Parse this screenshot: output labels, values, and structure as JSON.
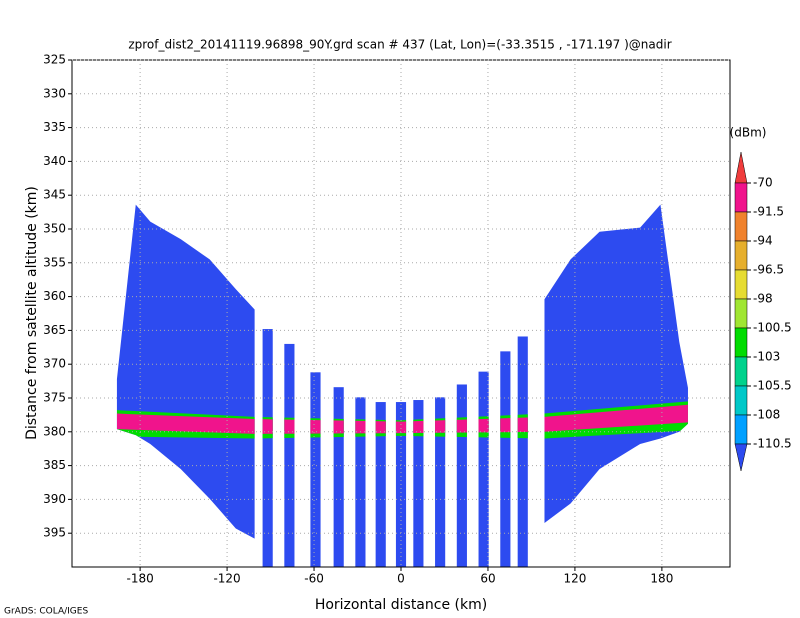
{
  "footer": "GrADS: COLA/IGES",
  "chart_data": {
    "type": "profile",
    "title": "zprof_dist2_20141119.96898_90Y.grd   scan # 437  (Lat, Lon)=(-33.3515 , -171.197 )@nadir",
    "xlabel": "Horizontal distance (km)",
    "ylabel": "Distance from satellite altitude (km)",
    "xlim": [
      -227,
      227
    ],
    "ylim": [
      400,
      325
    ],
    "xticks": [
      -180,
      -120,
      -60,
      0,
      60,
      120,
      180
    ],
    "yticks": [
      325,
      330,
      335,
      340,
      345,
      350,
      355,
      360,
      365,
      370,
      375,
      380,
      385,
      390,
      395
    ],
    "grid": true,
    "colorbar": {
      "label": "(dBm)",
      "levels": [
        -70,
        -91.5,
        -94,
        -96.5,
        -98,
        -100.5,
        -103,
        -105.5,
        -108,
        -110.5
      ],
      "colors": [
        "#f03c3c",
        "#f0148c",
        "#f0822d",
        "#e6af2d",
        "#e6dc32",
        "#a0e632",
        "#00dc00",
        "#00d28c",
        "#00c8c8",
        "#00a0ff",
        "#2d4bf0"
      ]
    },
    "layers": [
      {
        "x": [
          -196,
          -183,
          -173,
          -152,
          -132,
          -114,
          -101
        ],
        "top": [
          372.2,
          346.4,
          348.9,
          351.5,
          354.5,
          358.9,
          361.9
        ],
        "bottom": [
          379.6,
          380.5,
          381.8,
          385.5,
          389.9,
          394.3,
          395.8
        ],
        "value": -112,
        "clipped": false
      },
      {
        "x": [
          99,
          117,
          137,
          165,
          179,
          192,
          198
        ],
        "top": [
          360.4,
          354.5,
          350.4,
          349.8,
          346.4,
          366.7,
          373.5
        ],
        "bottom": [
          393.5,
          390.6,
          385.5,
          381.8,
          381,
          380,
          378.8
        ],
        "value": -112,
        "clipped": false
      },
      {
        "x": [
          -196,
          -101,
          0,
          99,
          198
        ],
        "top": [
          376.8,
          377.8,
          378.3,
          377.3,
          375.5
        ],
        "bottom": [
          380.7,
          381,
          380.6,
          381,
          379.8
        ],
        "value": -101,
        "clipped": true
      },
      {
        "x": [
          -196,
          -101,
          0,
          99,
          198
        ],
        "top": [
          377.3,
          378.1,
          378.5,
          377.8,
          376
        ],
        "bottom": [
          379.6,
          380.3,
          380.2,
          380,
          378.6
        ],
        "value": -85,
        "clipped": true
      }
    ],
    "strips": {
      "width": 7,
      "value": -112,
      "x": [
        -92,
        -77,
        -59,
        -43,
        -28,
        -14,
        0,
        12,
        27,
        42,
        57,
        72,
        84
      ],
      "top": [
        364.8,
        367,
        371.2,
        373.4,
        374.9,
        375.6,
        375.6,
        375.3,
        374.9,
        373,
        371.1,
        368.1,
        365.9
      ],
      "bottom": [
        400,
        400,
        400,
        400,
        400,
        400,
        400,
        400,
        400,
        400,
        400,
        400,
        400
      ]
    }
  }
}
